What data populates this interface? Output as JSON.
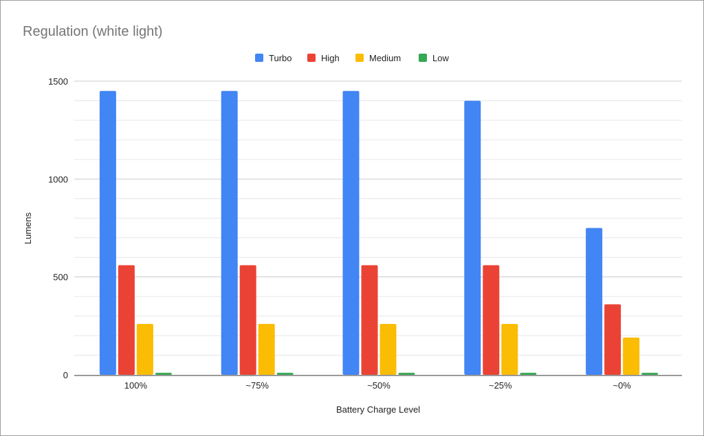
{
  "chart_data": {
    "type": "bar",
    "title": "Regulation (white light)",
    "xlabel": "Battery Charge Level",
    "ylabel": "Lumens",
    "ylim": [
      0,
      1500
    ],
    "yticks": [
      "0",
      "500",
      "1000",
      "1500"
    ],
    "grid": true,
    "legend": "top-center",
    "categories": [
      "100%",
      "~75%",
      "~50%",
      "~25%",
      "~0%"
    ],
    "series": [
      {
        "name": "Turbo",
        "color": "#4285f4",
        "values": [
          1450,
          1450,
          1450,
          1400,
          750
        ]
      },
      {
        "name": "High",
        "color": "#ea4335",
        "values": [
          560,
          560,
          560,
          560,
          360
        ]
      },
      {
        "name": "Medium",
        "color": "#fbbc04",
        "values": [
          260,
          260,
          260,
          260,
          190
        ]
      },
      {
        "name": "Low",
        "color": "#34a853",
        "values": [
          10,
          10,
          10,
          10,
          10
        ]
      }
    ]
  }
}
